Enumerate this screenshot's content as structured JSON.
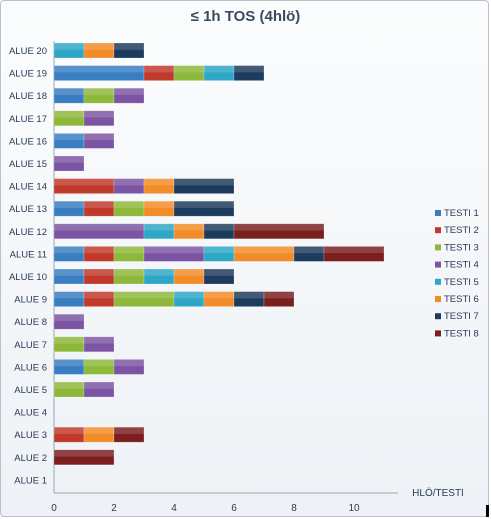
{
  "chart_data": {
    "type": "bar",
    "orientation": "horizontal",
    "stacked": true,
    "title": "≤ 1h  TOS (4hlö)",
    "xlabel": "HLÖ/TESTI",
    "ylabel": "",
    "xlim": [
      0,
      12
    ],
    "xticks": [
      0,
      2,
      4,
      6,
      8,
      10
    ],
    "grid": false,
    "legend_position": "right",
    "categories": [
      "ALUE 20",
      "ALUE 19",
      "ALUE 18",
      "ALUE 17",
      "ALUE 16",
      "ALUE 15",
      "ALUE 14",
      "ALUE 13",
      "ALUE 12",
      "ALUE 11",
      "ALUE 10",
      "ALUE 9",
      "ALUE 8",
      "ALUE 7",
      "ALUE 6",
      "ALUE 5",
      "ALUE 4",
      "ALUE 3",
      "ALUE 2",
      "ALUE 1"
    ],
    "series": [
      {
        "name": "TESTI 1",
        "color": "#3a7ec2",
        "values": [
          0,
          3,
          1,
          0,
          1,
          0,
          0,
          1,
          0,
          1,
          1,
          1,
          0,
          0,
          1,
          0,
          0,
          0,
          0,
          0
        ]
      },
      {
        "name": "TESTI 2",
        "color": "#c0392b",
        "values": [
          0,
          1,
          0,
          0,
          0,
          0,
          2,
          1,
          0,
          1,
          1,
          1,
          0,
          0,
          0,
          0,
          0,
          1,
          0,
          0
        ]
      },
      {
        "name": "TESTI 3",
        "color": "#8db83a",
        "values": [
          0,
          1,
          1,
          1,
          0,
          0,
          0,
          1,
          0,
          1,
          1,
          2,
          0,
          1,
          1,
          1,
          0,
          0,
          0,
          0
        ]
      },
      {
        "name": "TESTI 4",
        "color": "#7b55a3",
        "values": [
          0,
          0,
          1,
          1,
          1,
          1,
          1,
          0,
          3,
          2,
          0,
          0,
          1,
          1,
          1,
          1,
          0,
          0,
          0,
          0
        ]
      },
      {
        "name": "TESTI 5",
        "color": "#2ea6c6",
        "values": [
          1,
          1,
          0,
          0,
          0,
          0,
          0,
          0,
          1,
          1,
          1,
          1,
          0,
          0,
          0,
          0,
          0,
          0,
          0,
          0
        ]
      },
      {
        "name": "TESTI 6",
        "color": "#f28c28",
        "values": [
          1,
          0,
          0,
          0,
          0,
          0,
          1,
          1,
          1,
          2,
          1,
          1,
          0,
          0,
          0,
          0,
          0,
          1,
          0,
          0
        ]
      },
      {
        "name": "TESTI 7",
        "color": "#1d3b5c",
        "values": [
          1,
          1,
          0,
          0,
          0,
          0,
          2,
          2,
          1,
          1,
          1,
          1,
          0,
          0,
          0,
          0,
          0,
          0,
          0,
          0
        ]
      },
      {
        "name": "TESTI 8",
        "color": "#7a1e1e",
        "values": [
          0,
          0,
          0,
          0,
          0,
          0,
          0,
          0,
          3,
          2,
          0,
          1,
          0,
          0,
          0,
          0,
          0,
          1,
          2,
          0
        ]
      }
    ]
  }
}
